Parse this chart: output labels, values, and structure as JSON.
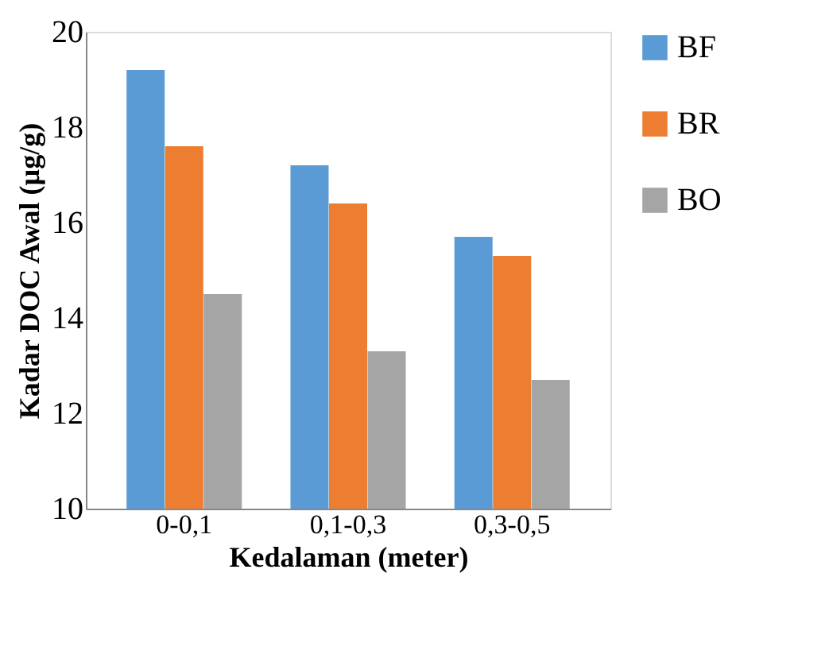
{
  "chart_data": {
    "type": "bar",
    "xlabel": "Kedalaman (meter)",
    "ylabel": "Kadar DOC Awal (µg/g)",
    "categories": [
      "0-0,1",
      "0,1-0,3",
      "0,3-0,5"
    ],
    "series": [
      {
        "name": "BF",
        "color": "#5b9bd5",
        "values": [
          19.2,
          17.2,
          15.7
        ]
      },
      {
        "name": "BR",
        "color": "#ed7d31",
        "values": [
          17.6,
          16.4,
          15.3
        ]
      },
      {
        "name": "BO",
        "color": "#a5a5a5",
        "values": [
          14.5,
          13.3,
          12.7
        ]
      }
    ],
    "ylim": [
      10,
      20
    ],
    "yticks": [
      10,
      12,
      14,
      16,
      18,
      20
    ],
    "grid": false,
    "legend": "right"
  }
}
